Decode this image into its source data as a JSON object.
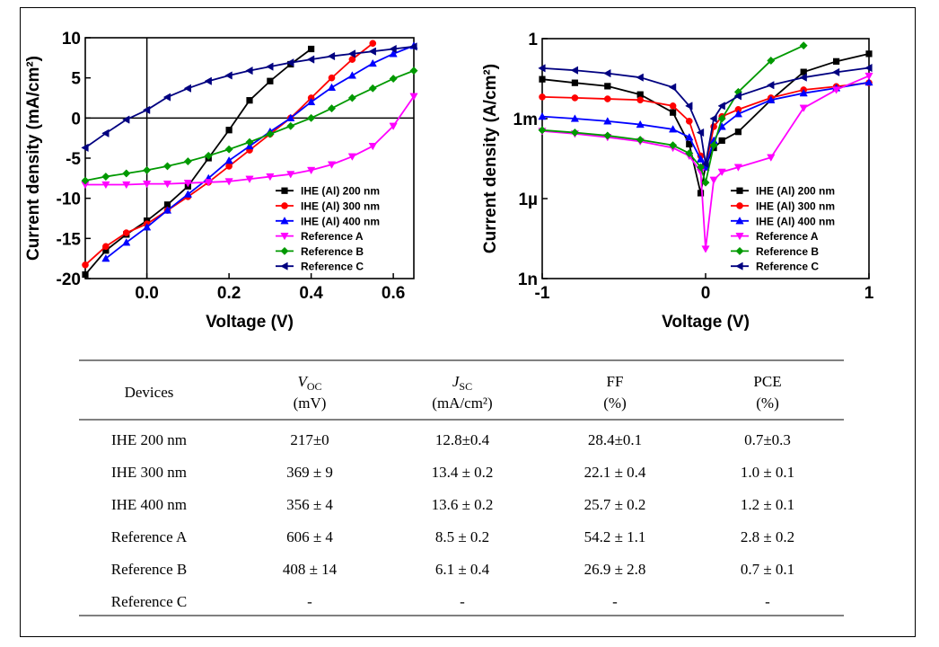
{
  "chart_data": [
    {
      "type": "line",
      "xlabel": "Voltage (V)",
      "ylabel": "Current density (mA/cm²)",
      "xlim": [
        -0.15,
        0.65
      ],
      "ylim": [
        -20,
        10
      ],
      "xticks": [
        {
          "value": 0,
          "label": "0.0"
        },
        0.2,
        0.4,
        0.6
      ],
      "yticks": [
        -20,
        -15,
        -10,
        -5,
        0,
        5,
        10
      ],
      "zero_lines": true,
      "legend": "lower right",
      "x": [
        -0.15,
        -0.1,
        -0.05,
        0,
        0.05,
        0.1,
        0.15,
        0.2,
        0.25,
        0.3,
        0.35,
        0.4,
        0.45,
        0.5,
        0.55,
        0.6,
        0.65
      ],
      "series": [
        {
          "name": "IHE (Al) 200 nm",
          "color": "#000000",
          "marker": "square",
          "values": [
            -19.5,
            -16.5,
            -14.5,
            -12.8,
            -10.8,
            -8.5,
            -5,
            -1.5,
            2.2,
            4.6,
            6.7,
            8.6,
            null,
            null,
            null,
            null,
            null
          ]
        },
        {
          "name": "IHE (Al) 300 nm",
          "color": "#ff0000",
          "marker": "circle",
          "values": [
            -18.3,
            -16,
            -14.3,
            -13.2,
            -11.5,
            -9.8,
            -8,
            -6,
            -4,
            -2,
            0,
            2.5,
            5,
            7.3,
            9.3,
            null,
            null
          ]
        },
        {
          "name": "IHE (Al) 400 nm",
          "color": "#0000ff",
          "marker": "triangle-up",
          "values": [
            null,
            -17.5,
            -15.5,
            -13.6,
            -11.5,
            -9.5,
            -7.5,
            -5.3,
            -3.5,
            -1.7,
            0,
            2,
            3.8,
            5.3,
            6.8,
            8,
            9
          ]
        },
        {
          "name": "Reference A",
          "color": "#ff00ff",
          "marker": "triangle-down",
          "values": [
            -8.3,
            -8.3,
            -8.3,
            -8.2,
            -8.2,
            -8.1,
            -8,
            -7.9,
            -7.6,
            -7.3,
            -7,
            -6.5,
            -5.8,
            -4.8,
            -3.5,
            -1,
            2.7
          ]
        },
        {
          "name": "Reference B",
          "color": "#009900",
          "marker": "diamond",
          "values": [
            -7.8,
            -7.3,
            -6.9,
            -6.5,
            -6,
            -5.4,
            -4.7,
            -3.9,
            -3,
            -2,
            -1,
            0,
            1.2,
            2.5,
            3.7,
            4.9,
            5.9
          ]
        },
        {
          "name": "Reference C",
          "color": "#000080",
          "marker": "triangle-left",
          "values": [
            -3.7,
            -1.9,
            -0.2,
            1,
            2.6,
            3.7,
            4.6,
            5.3,
            5.9,
            6.4,
            6.9,
            7.3,
            7.7,
            8,
            8.3,
            8.6,
            8.9
          ]
        }
      ]
    },
    {
      "type": "line",
      "xlabel": "Voltage (V)",
      "ylabel": "Current density (A/cm²)",
      "xlim": [
        -1,
        1
      ],
      "ylim": [
        1e-09,
        1
      ],
      "log_y": true,
      "xticks": [
        -1,
        0,
        1
      ],
      "yticks": [
        {
          "value": 1e-09,
          "label": "1n"
        },
        {
          "value": 1e-06,
          "label": "1µ"
        },
        {
          "value": 0.001,
          "label": "1m"
        },
        1
      ],
      "legend": "lower right",
      "x": [
        -1,
        -0.8,
        -0.6,
        -0.4,
        -0.2,
        -0.1,
        -0.03,
        0,
        0.05,
        0.1,
        0.2,
        0.4,
        0.6,
        0.8,
        1
      ],
      "series": [
        {
          "name": "IHE (Al) 200 nm",
          "color": "#000000",
          "marker": "square",
          "values": [
            0.03,
            0.022,
            0.0165,
            0.008,
            0.0017,
            0.00011,
            1.6e-06,
            1.7e-05,
            8e-05,
            0.00015,
            0.00032,
            0.005,
            0.056,
            0.14,
            0.27
          ]
        },
        {
          "name": "IHE (Al) 300 nm",
          "color": "#ff0000",
          "marker": "circle",
          "values": [
            0.0065,
            0.006,
            0.0055,
            0.005,
            0.003,
            0.0008,
            4e-05,
            1.5e-05,
            0.0005,
            0.0012,
            0.0022,
            0.006,
            0.012,
            0.016,
            0.022
          ]
        },
        {
          "name": "IHE (Al) 400 nm",
          "color": "#0000ff",
          "marker": "triangle-up",
          "values": [
            0.0012,
            0.001,
            0.0008,
            0.0006,
            0.0004,
            0.0002,
            3e-05,
            1.5e-05,
            0.00015,
            0.0005,
            0.0015,
            0.005,
            0.009,
            0.014,
            0.023
          ]
        },
        {
          "name": "Reference A",
          "color": "#ff00ff",
          "marker": "triangle-down",
          "values": [
            0.00034,
            0.00027,
            0.0002,
            0.00014,
            8e-05,
            4e-05,
            1e-05,
            1.3e-08,
            5e-06,
            1e-05,
            1.5e-05,
            3.5e-05,
            0.0025,
            0.012,
            0.04
          ]
        },
        {
          "name": "Reference B",
          "color": "#009900",
          "marker": "diamond",
          "values": [
            0.00037,
            0.0003,
            0.00023,
            0.00016,
            0.0001,
            5e-05,
            1.5e-05,
            4e-06,
            0.0001,
            0.001,
            0.01,
            0.15,
            0.55,
            null,
            null
          ]
        },
        {
          "name": "Reference C",
          "color": "#000080",
          "marker": "triangle-left",
          "values": [
            0.078,
            0.065,
            0.05,
            0.035,
            0.015,
            0.003,
            0.0003,
            2e-05,
            0.001,
            0.003,
            0.007,
            0.018,
            0.035,
            0.055,
            0.08
          ]
        }
      ]
    }
  ],
  "table": {
    "header": [
      {
        "label": "Devices"
      },
      {
        "symbol": "V",
        "sub": "OC",
        "unit": "(mV)"
      },
      {
        "symbol": "J",
        "sub": "SC",
        "unit": "(mA/cm²)"
      },
      {
        "label": "FF",
        "unit": "(%)"
      },
      {
        "label": "PCE",
        "unit": "(%)"
      }
    ],
    "rows": [
      [
        "IHE 200 nm",
        "217±0",
        "12.8±0.4",
        "28.4±0.1",
        "0.7±0.3"
      ],
      [
        "IHE 300 nm",
        "369 ± 9",
        "13.4 ± 0.2",
        "22.1 ± 0.4",
        "1.0 ± 0.1"
      ],
      [
        "IHE 400 nm",
        "356 ± 4",
        "13.6 ± 0.2",
        "25.7 ± 0.2",
        "1.2 ± 0.1"
      ],
      [
        "Reference A",
        "606 ± 4",
        "8.5 ± 0.2",
        "54.2 ± 1.1",
        "2.8 ± 0.2"
      ],
      [
        "Reference B",
        "408 ± 14",
        "6.1 ± 0.4",
        "26.9 ± 2.8",
        "0.7 ± 0.1"
      ],
      [
        "Reference C",
        "-",
        "-",
        "-",
        "-"
      ]
    ]
  }
}
